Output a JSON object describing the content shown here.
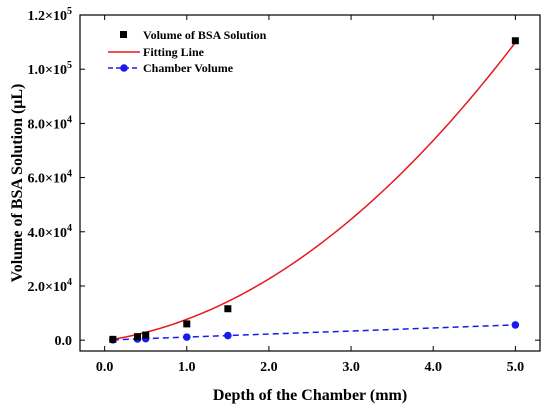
{
  "chart_data": {
    "type": "scatter",
    "xlabel": "Depth of the Chamber (mm)",
    "ylabel": "Volume of BSA Solution (μL)",
    "xlim": [
      -0.3,
      5.3
    ],
    "ylim": [
      -4000,
      120000
    ],
    "x_ticks": [
      {
        "v": 0.0,
        "label": "0.0"
      },
      {
        "v": 1.0,
        "label": "1.0"
      },
      {
        "v": 2.0,
        "label": "2.0"
      },
      {
        "v": 3.0,
        "label": "3.0"
      },
      {
        "v": 4.0,
        "label": "4.0"
      },
      {
        "v": 5.0,
        "label": "5.0"
      }
    ],
    "y_ticks": [
      {
        "v": 0,
        "label": "0.0",
        "exp": ""
      },
      {
        "v": 20000,
        "label": "2.0×10",
        "exp": "4"
      },
      {
        "v": 40000,
        "label": "4.0×10",
        "exp": "4"
      },
      {
        "v": 60000,
        "label": "6.0×10",
        "exp": "4"
      },
      {
        "v": 80000,
        "label": "8.0×10",
        "exp": "4"
      },
      {
        "v": 100000,
        "label": "1.0×10",
        "exp": "5"
      },
      {
        "v": 120000,
        "label": "1.2×10",
        "exp": "5"
      }
    ],
    "legend_position": "top-left",
    "series": [
      {
        "name": "Volume of BSA Solution",
        "kind": "scatter",
        "marker": "square",
        "color": "#000000",
        "x": [
          0.1,
          0.4,
          0.5,
          1.0,
          1.5,
          5.0
        ],
        "y": [
          300,
          1300,
          1900,
          6000,
          11600,
          110500
        ]
      },
      {
        "name": "Fitting Line",
        "kind": "line",
        "color": "#e8191c",
        "fit": {
          "a": 3540,
          "b": 4300,
          "c": -150
        }
      },
      {
        "name": "Chamber Volume",
        "kind": "line-marker",
        "marker": "circle",
        "dash": true,
        "color": "#1a1aef",
        "x": [
          0.1,
          0.4,
          0.5,
          1.0,
          1.5,
          5.0
        ],
        "y": [
          113,
          450,
          563,
          1125,
          1690,
          5630
        ]
      }
    ]
  }
}
